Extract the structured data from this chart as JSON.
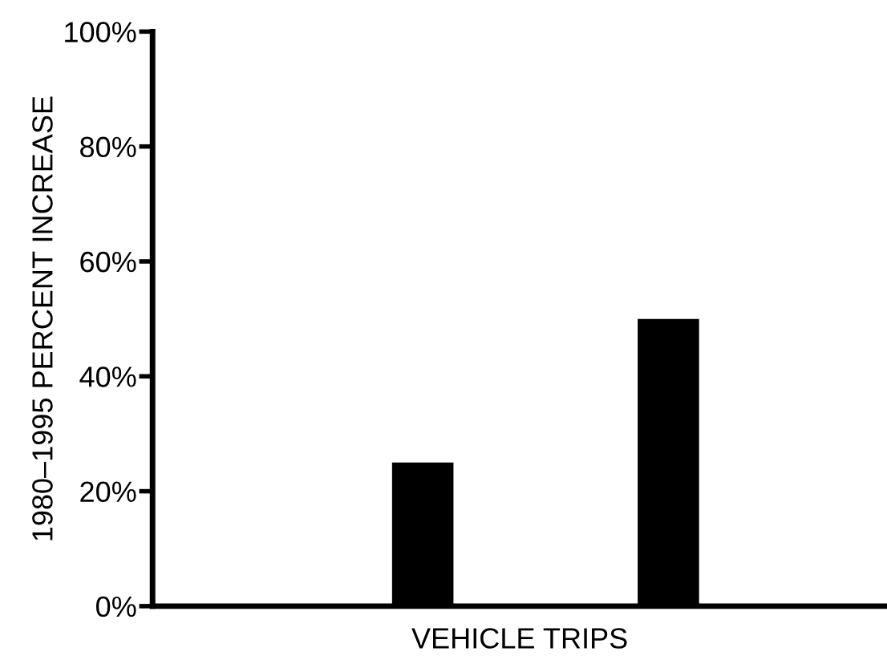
{
  "chart_data": {
    "type": "bar",
    "xlabel": "VEHICLE TRIPS",
    "ylabel": "1980–1995 PERCENT INCREASE",
    "categories": [
      null,
      null
    ],
    "values": [
      25,
      50
    ],
    "colors": [
      "#000000",
      "#000000"
    ],
    "ylim": [
      0,
      100
    ],
    "yticks": [
      {
        "value": 0,
        "label": "0%"
      },
      {
        "value": 20,
        "label": "20%"
      },
      {
        "value": 40,
        "label": "40%"
      },
      {
        "value": 60,
        "label": "60%"
      },
      {
        "value": 80,
        "label": "80%"
      },
      {
        "value": 100,
        "label": "100%"
      }
    ],
    "grid": false
  }
}
